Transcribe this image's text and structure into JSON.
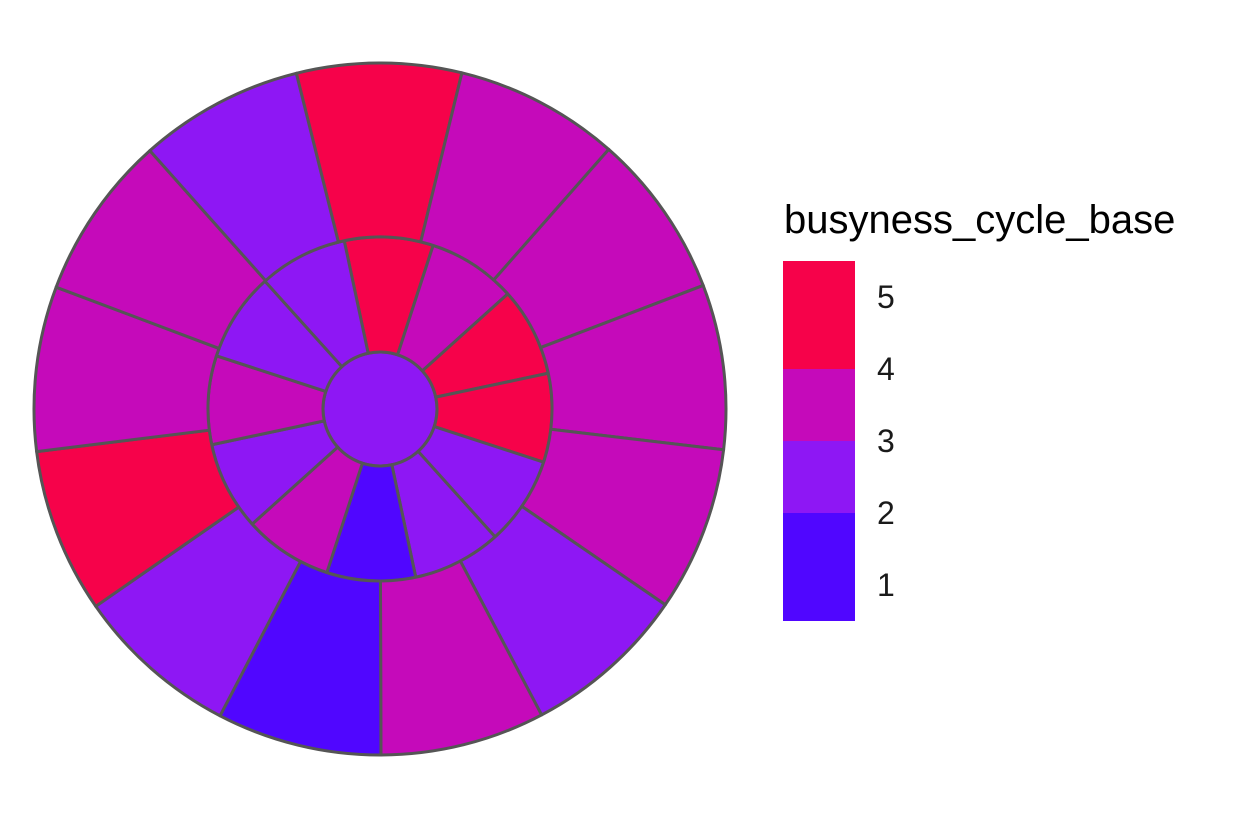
{
  "chart_data": {
    "type": "sunburst",
    "description_free": true,
    "legend": {
      "title": "busyness_cycle_base",
      "type": "colorbar",
      "min": 0.5,
      "max": 5.5,
      "breaks": [
        1,
        2,
        3,
        4,
        5
      ],
      "labels": [
        "1",
        "2",
        "3",
        "4",
        "5"
      ],
      "placement": "right"
    },
    "colors": {
      "1": "#5006FF",
      "2": "#8E17F4",
      "3": "#C50ABA",
      "4": "#C50ABA",
      "5": "#F6024A",
      "stroke": "#555555"
    },
    "rings": [
      {
        "level": 0,
        "values": [
          2
        ]
      },
      {
        "level": 1,
        "values": [
          5,
          3,
          5,
          5,
          2,
          2,
          1,
          3,
          2,
          3,
          2,
          2
        ]
      },
      {
        "level": 2,
        "values": [
          5,
          3,
          3,
          3,
          3,
          2,
          3,
          1,
          2,
          5,
          3,
          3,
          2
        ]
      }
    ]
  }
}
